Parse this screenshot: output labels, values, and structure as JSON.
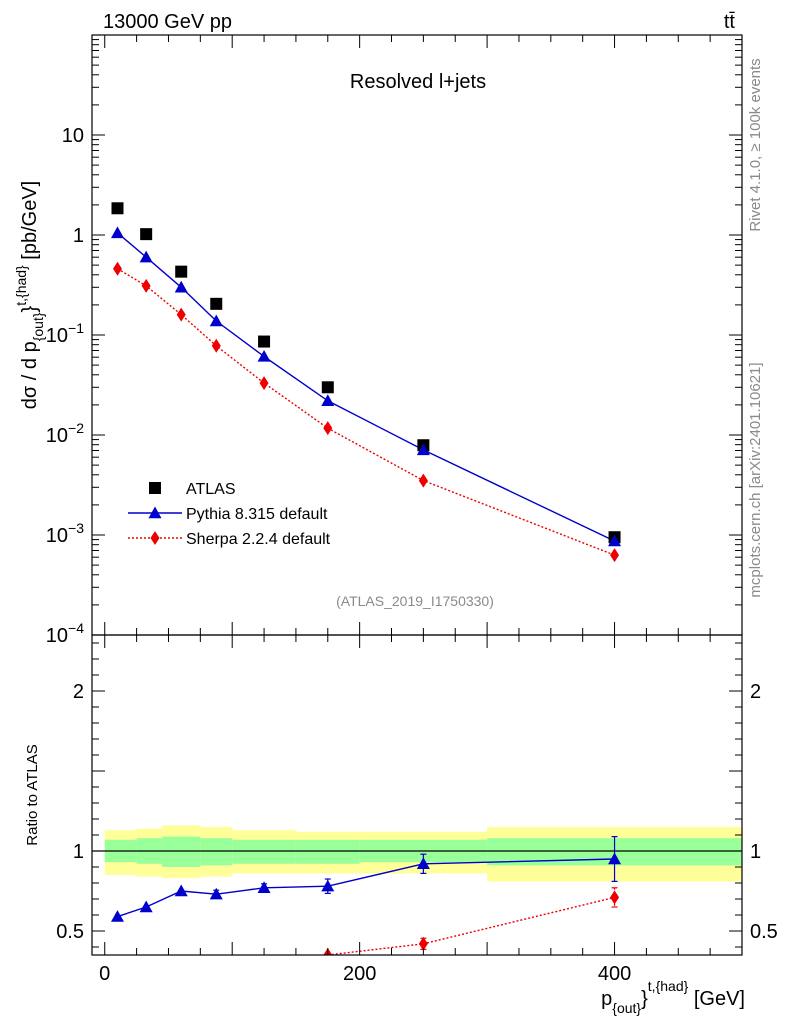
{
  "header": {
    "energy_label": "13000 GeV pp",
    "process_label": "tt̄"
  },
  "side_text": {
    "rivet": "Rivet 4.1.0, ≥ 100k events",
    "source": "mcplots.cern.ch [arXiv:2401.10621]"
  },
  "colors": {
    "atlas": "#000000",
    "pythia": "#0000cc",
    "sherpa": "#ee0000",
    "band_inner": "#99ff99",
    "band_outer": "#ffff99"
  },
  "chart_data": [
    {
      "type": "scatter",
      "title": "Resolved l+jets",
      "watermark": "(ATLAS_2019_I1750330)",
      "ylabel": {
        "main": "dσ / d p",
        "sub": "{out}",
        "sup": "t,{had}",
        "unit": " [pb/GeV]"
      },
      "yscale": "log",
      "ylim": [
        0.0001,
        100
      ],
      "xlim": [
        -10,
        500
      ],
      "ytick_labels": [
        {
          "value": 10,
          "label": "10"
        },
        {
          "value": 1,
          "label": "1"
        },
        {
          "value": 0.1,
          "base": "10",
          "exp": "−1"
        },
        {
          "value": 0.01,
          "base": "10",
          "exp": "−2"
        },
        {
          "value": 0.001,
          "base": "10",
          "exp": "−3"
        },
        {
          "value": 0.0001,
          "base": "10",
          "exp": "−4"
        }
      ],
      "legend_position": "bottom-left",
      "series": [
        {
          "name": "ATLAS",
          "marker": "square",
          "x": [
            10,
            32.5,
            60,
            87.5,
            125,
            175,
            250,
            400
          ],
          "y": [
            1.85,
            1.02,
            0.43,
            0.205,
            0.086,
            0.03,
            0.0079,
            0.00095
          ]
        },
        {
          "name": "Pythia 8.315 default",
          "marker": "triangle",
          "line": "solid",
          "x": [
            10,
            32.5,
            60,
            87.5,
            125,
            175,
            250,
            400
          ],
          "y": [
            1.05,
            0.6,
            0.3,
            0.138,
            0.061,
            0.022,
            0.0071,
            0.00087
          ]
        },
        {
          "name": "Sherpa 2.2.4 default",
          "marker": "diamond",
          "line": "dotted",
          "x": [
            10,
            32.5,
            60,
            87.5,
            125,
            175,
            250,
            400
          ],
          "y": [
            0.46,
            0.31,
            0.16,
            0.078,
            0.033,
            0.0117,
            0.0035,
            0.00063
          ]
        }
      ]
    },
    {
      "type": "scatter",
      "ylabel": "Ratio to ATLAS",
      "xlabel": {
        "main": "p",
        "sub": "{out}",
        "sup": "t,{had}",
        "unit": " [GeV]"
      },
      "ylim": [
        0.35,
        2.35
      ],
      "xlim": [
        -10,
        500
      ],
      "xtick_labels": [
        {
          "value": 0,
          "label": "0"
        },
        {
          "value": 200,
          "label": "200"
        },
        {
          "value": 400,
          "label": "400"
        }
      ],
      "ytick_labels": [
        {
          "value": 0.5,
          "label": "0.5"
        },
        {
          "value": 1,
          "label": "1"
        },
        {
          "value": 2,
          "label": "2"
        }
      ],
      "bands": [
        {
          "x0": 0,
          "x1": 25,
          "in_lo": 0.93,
          "in_hi": 1.07,
          "out_lo": 0.85,
          "out_hi": 1.13
        },
        {
          "x0": 25,
          "x1": 45,
          "in_lo": 0.92,
          "in_hi": 1.08,
          "out_lo": 0.84,
          "out_hi": 1.14
        },
        {
          "x0": 45,
          "x1": 75,
          "in_lo": 0.9,
          "in_hi": 1.09,
          "out_lo": 0.83,
          "out_hi": 1.16
        },
        {
          "x0": 75,
          "x1": 100,
          "in_lo": 0.91,
          "in_hi": 1.08,
          "out_lo": 0.84,
          "out_hi": 1.15
        },
        {
          "x0": 100,
          "x1": 150,
          "in_lo": 0.92,
          "in_hi": 1.07,
          "out_lo": 0.86,
          "out_hi": 1.13
        },
        {
          "x0": 150,
          "x1": 200,
          "in_lo": 0.92,
          "in_hi": 1.07,
          "out_lo": 0.86,
          "out_hi": 1.12
        },
        {
          "x0": 200,
          "x1": 300,
          "in_lo": 0.93,
          "in_hi": 1.07,
          "out_lo": 0.86,
          "out_hi": 1.12
        },
        {
          "x0": 300,
          "x1": 500,
          "in_lo": 0.91,
          "in_hi": 1.08,
          "out_lo": 0.81,
          "out_hi": 1.15
        }
      ],
      "series": [
        {
          "name": "Pythia 8.315 default",
          "marker": "triangle",
          "line": "solid",
          "x": [
            10,
            32.5,
            60,
            87.5,
            125,
            175,
            250,
            400
          ],
          "y": [
            0.59,
            0.65,
            0.75,
            0.73,
            0.77,
            0.78,
            0.92,
            0.95
          ],
          "err": [
            0,
            0,
            0,
            0.025,
            0.025,
            0.045,
            0.06,
            0.14
          ]
        },
        {
          "name": "Sherpa 2.2.4 default",
          "marker": "diamond",
          "line": "dotted",
          "x": [
            175,
            250,
            400
          ],
          "y": [
            0.35,
            0.42,
            0.71
          ],
          "err": [
            0,
            0.035,
            0.06
          ]
        }
      ]
    }
  ]
}
